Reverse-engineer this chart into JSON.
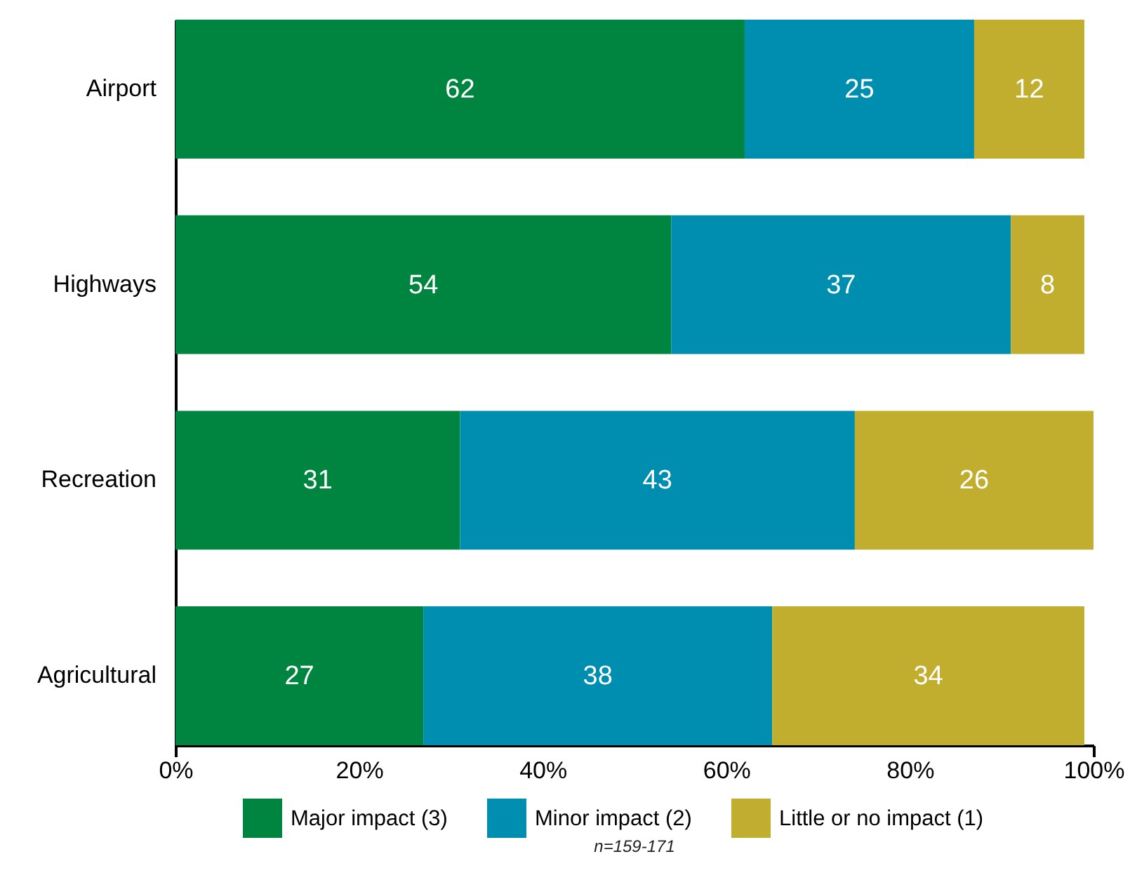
{
  "chart_data": {
    "type": "bar",
    "orientation": "horizontal",
    "stacked": true,
    "categories": [
      "Airport",
      "Highways",
      "Recreation",
      "Agricultural"
    ],
    "series": [
      {
        "name": "Major impact (3)",
        "color": "#008540",
        "values": [
          62,
          54,
          31,
          27
        ]
      },
      {
        "name": "Minor impact (2)",
        "color": "#008eb0",
        "values": [
          25,
          37,
          43,
          38
        ]
      },
      {
        "name": "Little or no impact (1)",
        "color": "#c1ae2e",
        "values": [
          12,
          8,
          26,
          34
        ]
      }
    ],
    "xlim": [
      0,
      100
    ],
    "xticks": [
      {
        "value": 0,
        "label": "0%"
      },
      {
        "value": 20,
        "label": "20%"
      },
      {
        "value": 40,
        "label": "40%"
      },
      {
        "value": 60,
        "label": "60%"
      },
      {
        "value": 80,
        "label": "80%"
      },
      {
        "value": 100,
        "label": "100%"
      }
    ],
    "data_labels": true,
    "legend": "bottom",
    "annotations": [
      "n=159-171"
    ]
  }
}
